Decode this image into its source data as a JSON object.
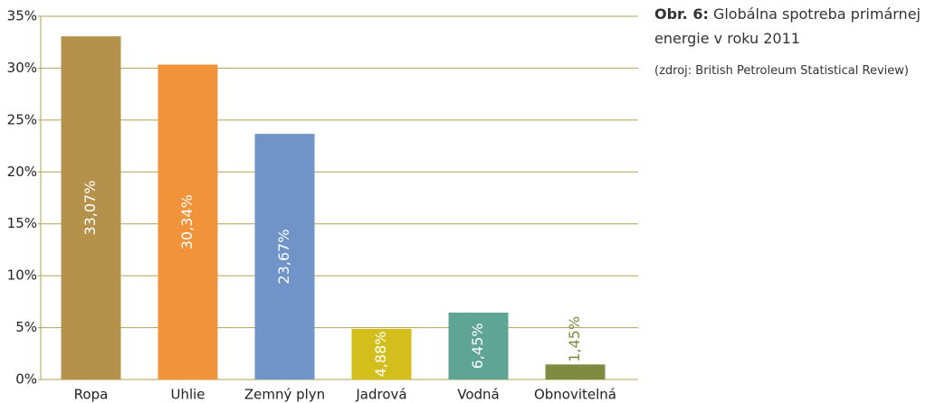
{
  "chart_data": {
    "type": "bar",
    "figure_label": "Obr. 6:",
    "title": "Globálna spotreba primárnej energie v roku 2011",
    "source": "(zdroj: British Petroleum Statistical Review)",
    "categories": [
      "Ropa",
      "Uhlie",
      "Zemný plyn",
      "Jadrová",
      "Vodná",
      "Obnovitelná"
    ],
    "values": [
      33.07,
      30.34,
      23.67,
      4.88,
      6.45,
      1.45
    ],
    "value_labels": [
      "33,07%",
      "30,34%",
      "23,67%",
      "4,88%",
      "6,45%",
      "1,45%"
    ],
    "colors": [
      "#b5924c",
      "#f0933a",
      "#7093c8",
      "#d3be1c",
      "#5fa596",
      "#7f8b40"
    ],
    "ylim": [
      0,
      35
    ],
    "yticks": [
      {
        "value": 0,
        "label": "0%"
      },
      {
        "value": 5,
        "label": "5%"
      },
      {
        "value": 10,
        "label": "10%"
      },
      {
        "value": 15,
        "label": "15%"
      },
      {
        "value": 20,
        "label": "20%"
      },
      {
        "value": 25,
        "label": "25%"
      },
      {
        "value": 30,
        "label": "30%"
      },
      {
        "value": 35,
        "label": "35%"
      }
    ],
    "grid": true
  }
}
